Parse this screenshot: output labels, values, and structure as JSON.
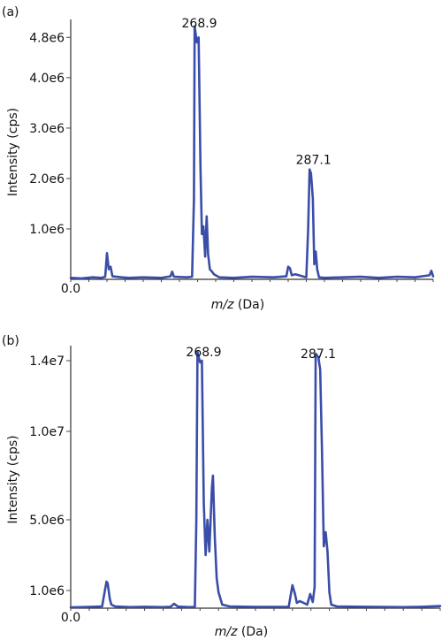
{
  "chart_data": [
    {
      "type": "line",
      "panel_label": "(a)",
      "ylabel": "Intensity (cps)",
      "xlabel_italic": "m/z",
      "xlabel_unit": " (Da)",
      "x_origin_label": "0.0",
      "y_ticks": [
        {
          "label": "1.0e6",
          "value": 1000000
        },
        {
          "label": "2.0e6",
          "value": 2000000
        },
        {
          "label": "3.0e6",
          "value": 3000000
        },
        {
          "label": "4.0e6",
          "value": 4000000
        },
        {
          "label": "4.8e6",
          "value": 4800000
        }
      ],
      "xlim": [
        0,
        1
      ],
      "ylim": [
        0,
        5050000
      ],
      "peak_labels": [
        {
          "text": "268.9",
          "x": 0.355,
          "y": 4930000
        },
        {
          "text": "287.1",
          "x": 0.67,
          "y": 2220000
        }
      ],
      "series": [
        {
          "color": "#3a4da8",
          "points": [
            [
              0.0,
              30000
            ],
            [
              0.03,
              20000
            ],
            [
              0.06,
              40000
            ],
            [
              0.085,
              30000
            ],
            [
              0.095,
              50000
            ],
            [
              0.1,
              520000
            ],
            [
              0.105,
              200000
            ],
            [
              0.11,
              250000
            ],
            [
              0.115,
              60000
            ],
            [
              0.14,
              40000
            ],
            [
              0.16,
              30000
            ],
            [
              0.2,
              40000
            ],
            [
              0.25,
              30000
            ],
            [
              0.275,
              60000
            ],
            [
              0.28,
              150000
            ],
            [
              0.285,
              50000
            ],
            [
              0.32,
              40000
            ],
            [
              0.335,
              50000
            ],
            [
              0.34,
              1600000
            ],
            [
              0.342,
              5020000
            ],
            [
              0.348,
              4700000
            ],
            [
              0.353,
              4800000
            ],
            [
              0.358,
              2200000
            ],
            [
              0.362,
              900000
            ],
            [
              0.366,
              1050000
            ],
            [
              0.371,
              450000
            ],
            [
              0.375,
              1250000
            ],
            [
              0.379,
              500000
            ],
            [
              0.384,
              200000
            ],
            [
              0.39,
              150000
            ],
            [
              0.395,
              100000
            ],
            [
              0.41,
              40000
            ],
            [
              0.45,
              30000
            ],
            [
              0.5,
              50000
            ],
            [
              0.56,
              40000
            ],
            [
              0.595,
              60000
            ],
            [
              0.6,
              250000
            ],
            [
              0.605,
              220000
            ],
            [
              0.61,
              80000
            ],
            [
              0.62,
              100000
            ],
            [
              0.64,
              60000
            ],
            [
              0.65,
              40000
            ],
            [
              0.655,
              1000000
            ],
            [
              0.659,
              2180000
            ],
            [
              0.663,
              2100000
            ],
            [
              0.668,
              1600000
            ],
            [
              0.672,
              300000
            ],
            [
              0.676,
              550000
            ],
            [
              0.68,
              200000
            ],
            [
              0.685,
              40000
            ],
            [
              0.7,
              30000
            ],
            [
              0.75,
              40000
            ],
            [
              0.8,
              50000
            ],
            [
              0.85,
              30000
            ],
            [
              0.9,
              50000
            ],
            [
              0.95,
              40000
            ],
            [
              0.99,
              80000
            ],
            [
              0.995,
              170000
            ],
            [
              1.0,
              60000
            ]
          ]
        }
      ]
    },
    {
      "type": "line",
      "panel_label": "(b)",
      "ylabel": "Intensity (cps)",
      "xlabel_italic": "m/z",
      "xlabel_unit": " (Da)",
      "x_origin_label": "0.0",
      "y_ticks": [
        {
          "label": "1.0e6",
          "value": 1000000
        },
        {
          "label": "5.0e6",
          "value": 5000000
        },
        {
          "label": "1.0e7",
          "value": 10000000
        },
        {
          "label": "1.4e7",
          "value": 14000000
        }
      ],
      "xlim": [
        0,
        1
      ],
      "ylim": [
        0,
        14550000
      ],
      "peak_labels": [
        {
          "text": "268.9",
          "x": 0.36,
          "y": 14050000
        },
        {
          "text": "287.1",
          "x": 0.67,
          "y": 13950000
        }
      ],
      "series": [
        {
          "color": "#3a4da8",
          "points": [
            [
              0.0,
              50000
            ],
            [
              0.03,
              60000
            ],
            [
              0.06,
              80000
            ],
            [
              0.085,
              100000
            ],
            [
              0.09,
              700000
            ],
            [
              0.097,
              1500000
            ],
            [
              0.1,
              1400000
            ],
            [
              0.106,
              500000
            ],
            [
              0.11,
              200000
            ],
            [
              0.12,
              100000
            ],
            [
              0.16,
              60000
            ],
            [
              0.2,
              80000
            ],
            [
              0.25,
              60000
            ],
            [
              0.27,
              80000
            ],
            [
              0.28,
              250000
            ],
            [
              0.29,
              90000
            ],
            [
              0.32,
              60000
            ],
            [
              0.336,
              70000
            ],
            [
              0.34,
              5000000
            ],
            [
              0.343,
              14500000
            ],
            [
              0.35,
              13900000
            ],
            [
              0.355,
              14000000
            ],
            [
              0.36,
              6000000
            ],
            [
              0.365,
              3000000
            ],
            [
              0.37,
              5000000
            ],
            [
              0.375,
              3200000
            ],
            [
              0.382,
              6800000
            ],
            [
              0.385,
              7500000
            ],
            [
              0.39,
              4000000
            ],
            [
              0.395,
              1700000
            ],
            [
              0.4,
              900000
            ],
            [
              0.41,
              200000
            ],
            [
              0.43,
              100000
            ],
            [
              0.5,
              70000
            ],
            [
              0.59,
              80000
            ],
            [
              0.6,
              1300000
            ],
            [
              0.607,
              800000
            ],
            [
              0.612,
              300000
            ],
            [
              0.62,
              400000
            ],
            [
              0.64,
              200000
            ],
            [
              0.648,
              800000
            ],
            [
              0.655,
              350000
            ],
            [
              0.66,
              1200000
            ],
            [
              0.663,
              14400000
            ],
            [
              0.67,
              14200000
            ],
            [
              0.675,
              13500000
            ],
            [
              0.68,
              9000000
            ],
            [
              0.685,
              3500000
            ],
            [
              0.69,
              4300000
            ],
            [
              0.695,
              3200000
            ],
            [
              0.7,
              900000
            ],
            [
              0.705,
              200000
            ],
            [
              0.72,
              100000
            ],
            [
              0.8,
              80000
            ],
            [
              0.9,
              60000
            ],
            [
              0.95,
              80000
            ],
            [
              1.0,
              120000
            ]
          ]
        }
      ]
    }
  ]
}
